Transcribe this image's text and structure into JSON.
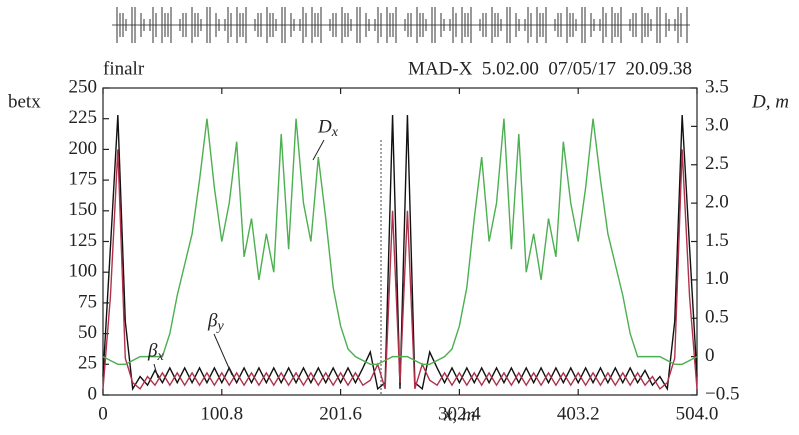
{
  "chart_data": {
    "type": "line",
    "header_left": "finalr",
    "header_right": "MAD-X  5.02.00  07/05/17  20.09.38",
    "ylabel": "betx",
    "y2label": "D, m",
    "xlabel": "x, m",
    "x": [
      0,
      6.3,
      12.6,
      18.9,
      25.2,
      31.5,
      37.8,
      44.1,
      50.4,
      56.7,
      63,
      69.3,
      75.6,
      81.9,
      88.2,
      94.5,
      100.8,
      107.1,
      113.4,
      119.7,
      126,
      132.3,
      138.6,
      144.9,
      151.2,
      157.5,
      163.8,
      170.1,
      176.4,
      182.7,
      189,
      195.3,
      201.6,
      207.9,
      214.2,
      220.5,
      226.8,
      233.1,
      239.4,
      245.7,
      252,
      258.3,
      264.6,
      270.9,
      277.2,
      283.5,
      289.8,
      296.1,
      302.4,
      308.7,
      315,
      321.3,
      327.6,
      333.9,
      340.2,
      346.5,
      352.8,
      359.1,
      365.4,
      371.7,
      378,
      384.3,
      390.6,
      396.9,
      403.2,
      409.5,
      415.8,
      422.1,
      428.4,
      434.7,
      441,
      447.3,
      453.6,
      459.9,
      466.2,
      472.5,
      478.8,
      485.1,
      491.4,
      497.7,
      504
    ],
    "series": [
      {
        "name": "βx",
        "color": "#111111",
        "axis": "y",
        "values": [
          15,
          120,
          228,
          60,
          5,
          15,
          8,
          20,
          10,
          22,
          10,
          22,
          10,
          22,
          10,
          22,
          10,
          22,
          10,
          22,
          10,
          22,
          10,
          22,
          10,
          22,
          10,
          22,
          10,
          22,
          10,
          22,
          10,
          22,
          10,
          22,
          35,
          5,
          10,
          228,
          5,
          228,
          10,
          5,
          35,
          22,
          10,
          22,
          10,
          22,
          10,
          22,
          10,
          22,
          10,
          22,
          10,
          22,
          10,
          22,
          10,
          22,
          10,
          22,
          10,
          22,
          10,
          22,
          10,
          22,
          10,
          22,
          10,
          20,
          8,
          15,
          5,
          60,
          228,
          120,
          15
        ]
      },
      {
        "name": "βy",
        "color": "#b0304a",
        "axis": "y",
        "values": [
          5,
          80,
          200,
          30,
          10,
          5,
          15,
          8,
          18,
          8,
          18,
          8,
          18,
          8,
          18,
          8,
          18,
          8,
          18,
          8,
          18,
          8,
          18,
          8,
          18,
          8,
          18,
          8,
          18,
          8,
          18,
          8,
          18,
          8,
          18,
          8,
          12,
          25,
          5,
          150,
          10,
          150,
          5,
          25,
          12,
          8,
          18,
          8,
          18,
          8,
          18,
          8,
          18,
          8,
          18,
          8,
          18,
          8,
          18,
          8,
          18,
          8,
          18,
          8,
          18,
          8,
          18,
          8,
          18,
          8,
          18,
          8,
          18,
          8,
          15,
          5,
          10,
          30,
          200,
          80,
          5
        ]
      },
      {
        "name": "Dx",
        "color": "#4caf50",
        "axis": "y2",
        "values": [
          0,
          -0.05,
          -0.1,
          -0.1,
          -0.05,
          0,
          0,
          0,
          0,
          0.3,
          0.8,
          1.2,
          1.6,
          2.3,
          3.1,
          2.2,
          1.5,
          2.0,
          2.8,
          1.3,
          1.8,
          1.0,
          1.6,
          1.1,
          2.9,
          1.4,
          3.1,
          2.0,
          1.5,
          2.6,
          1.8,
          0.9,
          0.4,
          0.1,
          0,
          -0.05,
          -0.1,
          -0.1,
          -0.05,
          0,
          0,
          0,
          -0.05,
          -0.1,
          -0.1,
          -0.05,
          0,
          0.1,
          0.4,
          0.9,
          1.8,
          2.6,
          1.5,
          2.0,
          3.1,
          1.4,
          2.9,
          1.1,
          1.6,
          1.0,
          1.8,
          1.3,
          2.8,
          2.0,
          1.5,
          2.2,
          3.1,
          2.3,
          1.6,
          1.2,
          0.8,
          0.3,
          0,
          0,
          0,
          0,
          -0.05,
          -0.1,
          -0.1,
          -0.05,
          0
        ]
      }
    ],
    "xlim": [
      0,
      504
    ],
    "xticks": [
      0,
      100.8,
      201.6,
      302.4,
      403.2,
      {
        "value": 504,
        "label": "504.0"
      }
    ],
    "ylim": [
      0,
      250
    ],
    "yticks": [
      0,
      25,
      50,
      75,
      100,
      125,
      150,
      175,
      200,
      225,
      250
    ],
    "y2lim": [
      -0.5,
      3.5
    ],
    "y2ticks": [
      {
        "value": -0.5,
        "label": "−0.5"
      },
      0,
      0.5,
      {
        "value": 1,
        "label": "1.0"
      },
      1.5,
      {
        "value": 2,
        "label": "2.0"
      },
      2.5,
      {
        "value": 3,
        "label": "3.0"
      },
      3.5
    ],
    "grid": false
  }
}
